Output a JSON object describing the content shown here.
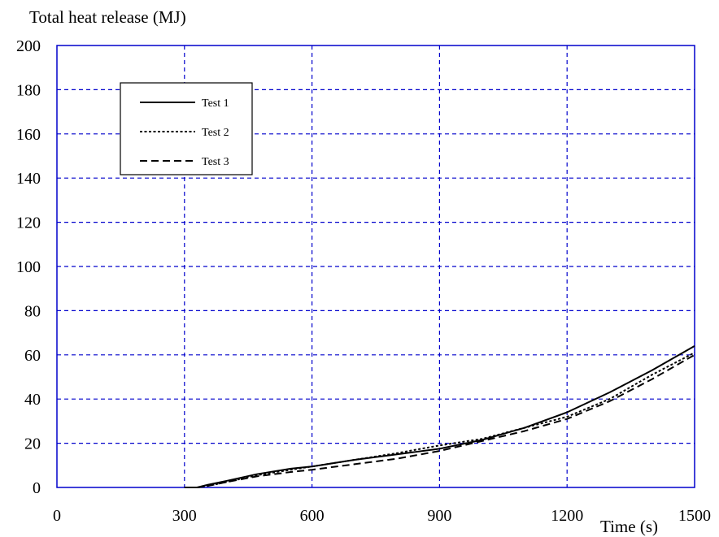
{
  "chart_data": {
    "type": "line",
    "ylabel": "Total heat release (MJ)",
    "xlabel": "Time (s)",
    "xlim": [
      0,
      1500
    ],
    "ylim": [
      0,
      200
    ],
    "xticks": [
      0,
      300,
      600,
      900,
      1200,
      1500
    ],
    "yticks": [
      0,
      20,
      40,
      60,
      80,
      100,
      120,
      140,
      160,
      180,
      200
    ],
    "grid": true,
    "grid_color": "#0000cc",
    "legend_position": "top-left",
    "series": [
      {
        "name": "Test 1",
        "style": "solid",
        "x": [
          300,
          330,
          350,
          400,
          470,
          550,
          600,
          700,
          800,
          900,
          1000,
          1100,
          1200,
          1300,
          1400,
          1500
        ],
        "y": [
          0,
          0,
          1,
          3,
          6,
          8.5,
          9.5,
          12.5,
          15,
          17.5,
          21.5,
          27,
          34,
          43,
          53,
          64
        ]
      },
      {
        "name": "Test 2",
        "style": "dotted",
        "x": [
          300,
          330,
          350,
          400,
          470,
          550,
          600,
          700,
          800,
          900,
          1000,
          1100,
          1200,
          1300,
          1400,
          1500
        ],
        "y": [
          0,
          0,
          0.5,
          2.5,
          5.5,
          8,
          9.5,
          12.5,
          15.5,
          19,
          22,
          27,
          32,
          40,
          51,
          61
        ]
      },
      {
        "name": "Test 3",
        "style": "dashed",
        "x": [
          300,
          330,
          350,
          400,
          470,
          550,
          600,
          700,
          800,
          900,
          1000,
          1100,
          1200,
          1300,
          1400,
          1500
        ],
        "y": [
          0,
          0,
          0.5,
          2.5,
          5,
          7,
          8,
          10.5,
          13,
          16.5,
          21,
          25.5,
          31,
          39,
          49,
          60
        ]
      }
    ]
  }
}
